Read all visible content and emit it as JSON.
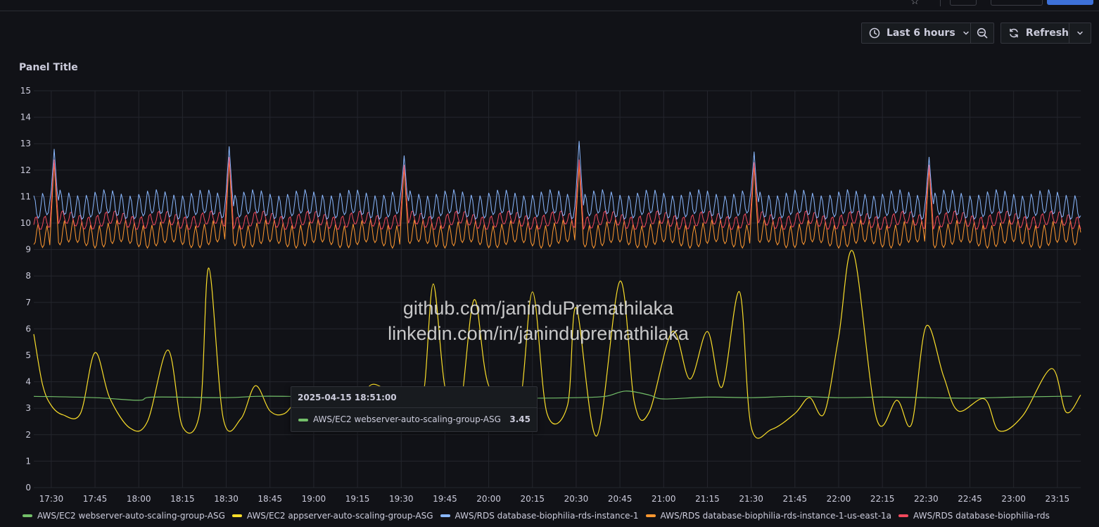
{
  "toolbar": {
    "time_range_label": "Last 6 hours",
    "refresh_label": "Refresh"
  },
  "panel": {
    "title": "Panel Title"
  },
  "watermark": {
    "line1": "github.com/janinduPremathilaka",
    "line2": "linkedin.com/in/janinduprem athilaka"
  },
  "tooltip": {
    "time": "2025-04-15 18:51:00",
    "series": "AWS/EC2 webserver-auto-scaling-group-ASG",
    "value": "3.45"
  },
  "chart_data": {
    "type": "line",
    "title": "Panel Title",
    "ylim": [
      0,
      15
    ],
    "yticks": [
      0,
      1,
      2,
      3,
      4,
      5,
      6,
      7,
      8,
      9,
      10,
      11,
      12,
      13,
      14,
      15
    ],
    "xticks": [
      "17:30",
      "17:45",
      "18:00",
      "18:15",
      "18:30",
      "18:45",
      "19:00",
      "19:15",
      "19:30",
      "19:45",
      "20:00",
      "20:15",
      "20:30",
      "20:45",
      "21:00",
      "21:15",
      "21:30",
      "21:45",
      "22:00",
      "22:15",
      "22:30",
      "22:45",
      "23:00",
      "23:15"
    ],
    "x_start": "17:24",
    "x_end": "23:23",
    "grid": true,
    "legend_placement": "bottom",
    "series": [
      {
        "name": "AWS/EC2 webserver-auto-scaling-group-ASG",
        "color": "#73bf69",
        "points": [
          [
            "17:24",
            3.45
          ],
          [
            "17:45",
            3.4
          ],
          [
            "18:00",
            3.3
          ],
          [
            "18:05",
            3.42
          ],
          [
            "18:30",
            3.4
          ],
          [
            "18:40",
            3.45
          ],
          [
            "18:51",
            3.45
          ],
          [
            "19:10",
            3.4
          ],
          [
            "19:30",
            3.4
          ],
          [
            "19:45",
            3.42
          ],
          [
            "20:00",
            3.4
          ],
          [
            "20:15",
            3.38
          ],
          [
            "20:30",
            3.4
          ],
          [
            "20:40",
            3.45
          ],
          [
            "20:47",
            3.65
          ],
          [
            "20:55",
            3.5
          ],
          [
            "21:00",
            3.35
          ],
          [
            "21:15",
            3.42
          ],
          [
            "21:30",
            3.4
          ],
          [
            "21:45",
            3.45
          ],
          [
            "22:00",
            3.4
          ],
          [
            "22:15",
            3.42
          ],
          [
            "22:30",
            3.4
          ],
          [
            "22:45",
            3.38
          ],
          [
            "23:00",
            3.42
          ],
          [
            "23:15",
            3.45
          ],
          [
            "23:20",
            3.45
          ]
        ]
      },
      {
        "name": "AWS/EC2 appserver-auto-scaling-group-ASG",
        "color": "#fade2a",
        "points": [
          [
            "17:24",
            5.8
          ],
          [
            "17:27",
            3.9
          ],
          [
            "17:30",
            3.1
          ],
          [
            "17:34",
            2.75
          ],
          [
            "17:40",
            2.8
          ],
          [
            "17:45",
            5.1
          ],
          [
            "17:50",
            3.4
          ],
          [
            "17:57",
            2.25
          ],
          [
            "18:03",
            2.5
          ],
          [
            "18:10",
            5.2
          ],
          [
            "18:15",
            2.3
          ],
          [
            "18:21",
            2.9
          ],
          [
            "18:24",
            8.3
          ],
          [
            "18:29",
            2.6
          ],
          [
            "18:35",
            2.6
          ],
          [
            "18:40",
            3.85
          ],
          [
            "18:45",
            2.9
          ],
          [
            "18:50",
            2.8
          ],
          [
            "18:56",
            3.45
          ],
          [
            "19:04",
            3.1
          ],
          [
            "19:13",
            2.15
          ],
          [
            "19:20",
            3.9
          ],
          [
            "19:35",
            2.8
          ],
          [
            "19:38",
            3.85
          ],
          [
            "19:41",
            7.7
          ],
          [
            "19:45",
            3.8
          ],
          [
            "19:50",
            2.9
          ],
          [
            "19:55",
            7.1
          ],
          [
            "20:00",
            3.85
          ],
          [
            "20:10",
            2.9
          ],
          [
            "20:15",
            7.4
          ],
          [
            "20:20",
            2.8
          ],
          [
            "20:27",
            3.1
          ],
          [
            "20:30",
            6.8
          ],
          [
            "20:37",
            1.95
          ],
          [
            "20:45",
            7.8
          ],
          [
            "20:50",
            3.2
          ],
          [
            "20:55",
            2.85
          ],
          [
            "21:03",
            5.9
          ],
          [
            "21:09",
            4.1
          ],
          [
            "21:15",
            5.9
          ],
          [
            "21:20",
            3.8
          ],
          [
            "21:26",
            7.4
          ],
          [
            "21:30",
            2.3
          ],
          [
            "21:37",
            2.2
          ],
          [
            "21:45",
            2.8
          ],
          [
            "21:50",
            3.4
          ],
          [
            "21:55",
            2.8
          ],
          [
            "22:00",
            5.7
          ],
          [
            "22:05",
            8.9
          ],
          [
            "22:13",
            2.6
          ],
          [
            "22:20",
            3.3
          ],
          [
            "22:25",
            2.4
          ],
          [
            "22:30",
            6.1
          ],
          [
            "22:36",
            4.2
          ],
          [
            "22:41",
            2.9
          ],
          [
            "22:50",
            3.35
          ],
          [
            "22:55",
            2.15
          ],
          [
            "23:03",
            2.7
          ],
          [
            "23:13",
            4.5
          ],
          [
            "23:18",
            2.85
          ],
          [
            "23:23",
            3.5
          ]
        ]
      },
      {
        "name": "AWS/RDS database-biophilia-rds-instance-1",
        "color": "#8ab8ff",
        "base": 10.4,
        "amplitude": 0.9,
        "period_minutes": 3,
        "spikes": [
          [
            "17:31",
            12.8
          ],
          [
            "18:31",
            12.9
          ],
          [
            "19:31",
            12.55
          ],
          [
            "20:31",
            13.1
          ],
          [
            "21:31",
            12.7
          ],
          [
            "22:31",
            12.5
          ]
        ]
      },
      {
        "name": "AWS/RDS database-biophilia-rds-instance-1-us-east-1a",
        "color": "#ff9830",
        "base": 9.3,
        "amplitude": 0.85,
        "period_minutes": 3,
        "spikes": [
          [
            "17:31",
            12.3
          ],
          [
            "18:31",
            12.4
          ],
          [
            "19:31",
            12.1
          ],
          [
            "20:31",
            12.2
          ],
          [
            "21:31",
            12.2
          ],
          [
            "22:31",
            12.1
          ]
        ]
      },
      {
        "name": "AWS/RDS database-biophilia-rds",
        "color": "#f2495c",
        "base": 9.95,
        "amplitude": 0.5,
        "period_minutes": 3,
        "spikes": [
          [
            "17:31",
            12.4
          ],
          [
            "18:31",
            12.5
          ],
          [
            "19:31",
            12.2
          ],
          [
            "20:31",
            12.4
          ],
          [
            "21:31",
            12.3
          ],
          [
            "22:31",
            12.2
          ]
        ]
      }
    ]
  }
}
